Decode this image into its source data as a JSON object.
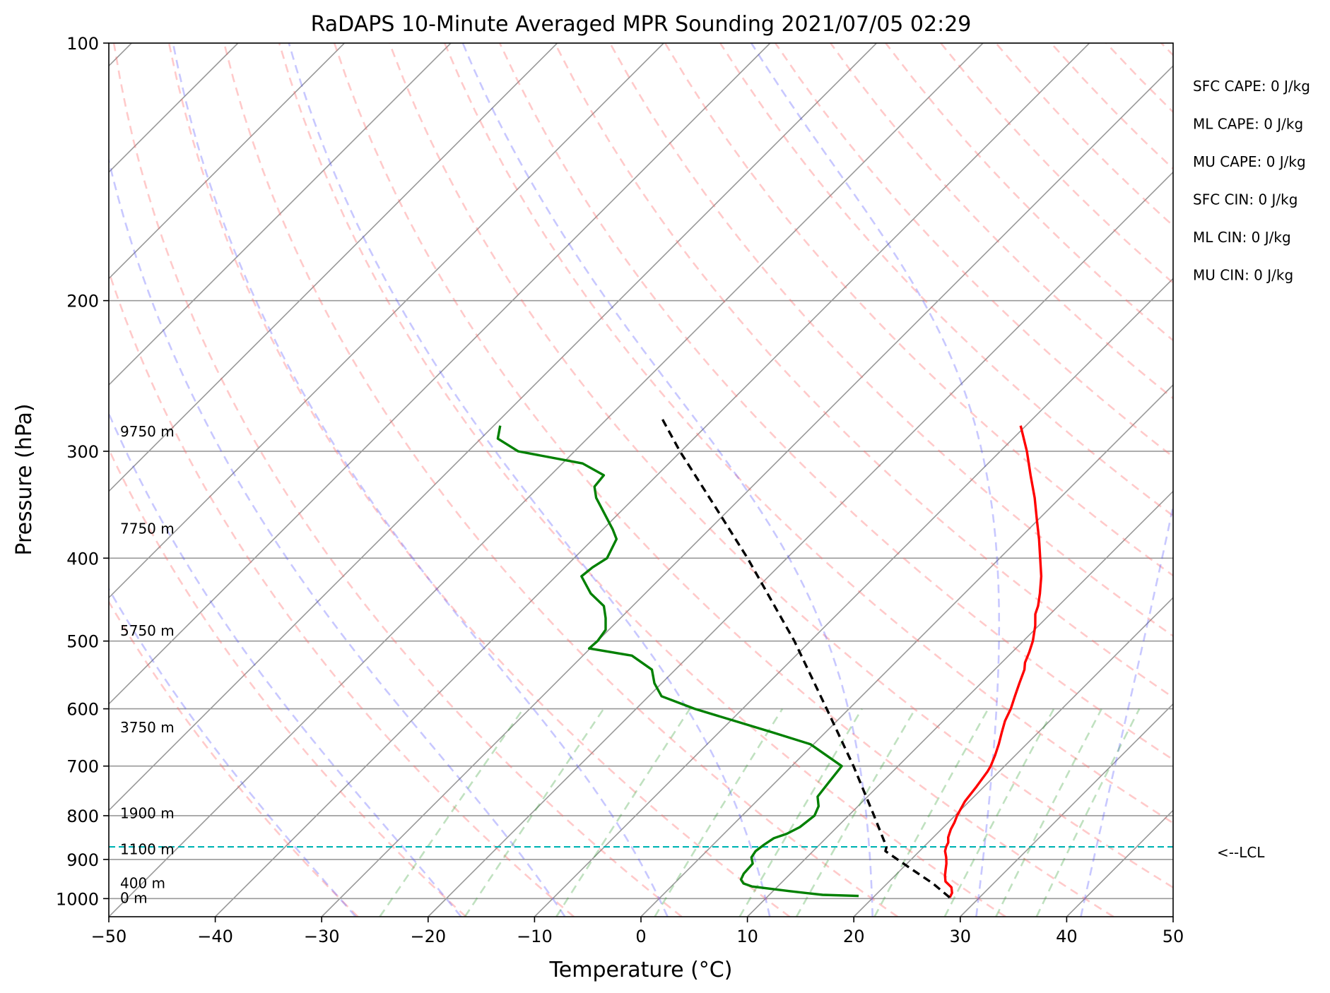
{
  "chart_data": {
    "type": "line",
    "diagram": "skew-T log-P",
    "title": "RaDAPS 10-Minute Averaged MPR Sounding 2021/07/05 02:29",
    "xlabel": "Temperature (°C)",
    "ylabel": "Pressure (hPa)",
    "xlim": [
      -50,
      50
    ],
    "ylim": [
      1050,
      100
    ],
    "y_scale": "log",
    "skew_degrees": 45,
    "grid": true,
    "x_ticks": [
      -50,
      -40,
      -30,
      -20,
      -10,
      0,
      10,
      20,
      30,
      40,
      50
    ],
    "x_tick_labels": [
      "−50",
      "−40",
      "−30",
      "−20",
      "−10",
      "0",
      "10",
      "20",
      "30",
      "40",
      "50"
    ],
    "y_ticks": [
      100,
      200,
      300,
      400,
      500,
      600,
      700,
      800,
      900,
      1000
    ],
    "y_tick_labels": [
      "100",
      "200",
      "300",
      "400",
      "500",
      "600",
      "700",
      "800",
      "900",
      "1000"
    ],
    "background_lines": {
      "isotherms": {
        "color": "#999999",
        "temperatures": [
          -130,
          -120,
          -110,
          -100,
          -90,
          -80,
          -70,
          -60,
          -50,
          -40,
          -30,
          -20,
          -10,
          0,
          10,
          20,
          30,
          40,
          50
        ]
      },
      "dry_adiabats": {
        "color": "#ff6666",
        "opacity": 0.35,
        "dash": "dashed",
        "theta_c": [
          -30,
          -20,
          -10,
          0,
          10,
          20,
          30,
          40,
          50,
          60,
          70,
          80,
          90,
          100,
          110,
          120,
          130,
          140,
          150,
          160,
          170,
          180,
          190,
          200
        ]
      },
      "moist_adiabats": {
        "color": "#4a4aff",
        "opacity": 0.3,
        "dash": "dashed",
        "start_temp_c_at_1000": [
          -30,
          -20,
          -10,
          0,
          10,
          20,
          30,
          40,
          50,
          60
        ]
      },
      "mixing_ratio_lines": {
        "color": "#2f9a2f",
        "opacity": 0.3,
        "dash": "dashed",
        "g_per_kg": [
          0.5,
          1,
          2,
          4,
          7,
          10,
          16,
          24,
          32,
          40
        ],
        "top_pressure": 600
      }
    },
    "series": [
      {
        "name": "",
        "color": "#ff0000",
        "line_style": "solid",
        "points": [
          [
            997,
            27.2
          ],
          [
            985,
            27.0
          ],
          [
            970,
            26.4
          ],
          [
            955,
            25.3
          ],
          [
            940,
            24.7
          ],
          [
            925,
            24.2
          ],
          [
            910,
            23.7
          ],
          [
            895,
            23.1
          ],
          [
            880,
            22.4
          ],
          [
            870,
            22.1
          ],
          [
            860,
            21.9
          ],
          [
            848,
            21.4
          ],
          [
            830,
            20.9
          ],
          [
            815,
            20.6
          ],
          [
            800,
            20.2
          ],
          [
            770,
            19.6
          ],
          [
            740,
            19.3
          ],
          [
            710,
            18.9
          ],
          [
            700,
            18.7
          ],
          [
            680,
            18.1
          ],
          [
            660,
            17.4
          ],
          [
            640,
            16.6
          ],
          [
            620,
            15.8
          ],
          [
            600,
            15.2
          ],
          [
            580,
            14.4
          ],
          [
            560,
            13.6
          ],
          [
            540,
            12.8
          ],
          [
            530,
            12.2
          ],
          [
            515,
            11.6
          ],
          [
            500,
            10.9
          ],
          [
            480,
            9.7
          ],
          [
            465,
            8.6
          ],
          [
            455,
            8.1
          ],
          [
            440,
            7.1
          ],
          [
            420,
            5.6
          ],
          [
            400,
            3.8
          ],
          [
            380,
            1.9
          ],
          [
            360,
            -0.2
          ],
          [
            340,
            -2.4
          ],
          [
            320,
            -4.9
          ],
          [
            300,
            -7.5
          ],
          [
            280,
            -10.5
          ]
        ]
      },
      {
        "name": "",
        "color": "#008000",
        "line_style": "solid",
        "points": [
          [
            993,
            18.5
          ],
          [
            990,
            15.0
          ],
          [
            980,
            11.5
          ],
          [
            968,
            7.6
          ],
          [
            960,
            6.5
          ],
          [
            950,
            5.9
          ],
          [
            935,
            5.6
          ],
          [
            910,
            5.5
          ],
          [
            895,
            4.8
          ],
          [
            880,
            4.6
          ],
          [
            865,
            4.8
          ],
          [
            850,
            5.1
          ],
          [
            840,
            5.9
          ],
          [
            825,
            6.5
          ],
          [
            800,
            6.8
          ],
          [
            780,
            6.3
          ],
          [
            760,
            5.3
          ],
          [
            730,
            5.0
          ],
          [
            700,
            4.7
          ],
          [
            660,
            -0.3
          ],
          [
            640,
            -4.8
          ],
          [
            620,
            -9.6
          ],
          [
            600,
            -14.5
          ],
          [
            580,
            -18.8
          ],
          [
            560,
            -20.7
          ],
          [
            540,
            -22.2
          ],
          [
            520,
            -25.4
          ],
          [
            510,
            -30.1
          ],
          [
            500,
            -30.0
          ],
          [
            485,
            -30.3
          ],
          [
            470,
            -31.4
          ],
          [
            455,
            -32.7
          ],
          [
            440,
            -35.1
          ],
          [
            420,
            -37.6
          ],
          [
            410,
            -37.4
          ],
          [
            400,
            -36.9
          ],
          [
            380,
            -37.8
          ],
          [
            370,
            -39.1
          ],
          [
            340,
            -43.6
          ],
          [
            330,
            -44.8
          ],
          [
            320,
            -45.0
          ],
          [
            310,
            -48.1
          ],
          [
            300,
            -55.3
          ],
          [
            290,
            -58.4
          ],
          [
            280,
            -59.4
          ]
        ]
      },
      {
        "name": "",
        "color": "#000000",
        "line_style": "dashed",
        "points": [
          [
            997,
            27.2
          ],
          [
            960,
            24.3
          ],
          [
            920,
            20.6
          ],
          [
            880,
            16.8
          ],
          [
            870,
            16.5
          ],
          [
            800,
            12.4
          ],
          [
            700,
            5.8
          ],
          [
            600,
            -2.1
          ],
          [
            500,
            -11.5
          ],
          [
            400,
            -23.7
          ],
          [
            350,
            -31.3
          ],
          [
            300,
            -40.1
          ],
          [
            275,
            -44.8
          ]
        ]
      }
    ],
    "lcl": {
      "pressure": 870,
      "label": "<--LCL",
      "color": "#00b3b3"
    },
    "height_labels": [
      {
        "label": "9750 m",
        "pressure": 285
      },
      {
        "label": "7750 m",
        "pressure": 370
      },
      {
        "label": "5750 m",
        "pressure": 487
      },
      {
        "label": "3750 m",
        "pressure": 632
      },
      {
        "label": "1900 m",
        "pressure": 796
      },
      {
        "label": "1100 m",
        "pressure": 877
      },
      {
        "label": "400 m",
        "pressure": 961
      },
      {
        "label": "0 m",
        "pressure": 1000
      }
    ],
    "annotations": [
      "SFC CAPE: 0 J/kg",
      "ML CAPE: 0 J/kg",
      "MU CAPE: 0 J/kg",
      "SFC CIN: 0 J/kg",
      "ML CIN: 0 J/kg",
      "MU CIN: 0 J/kg"
    ]
  }
}
